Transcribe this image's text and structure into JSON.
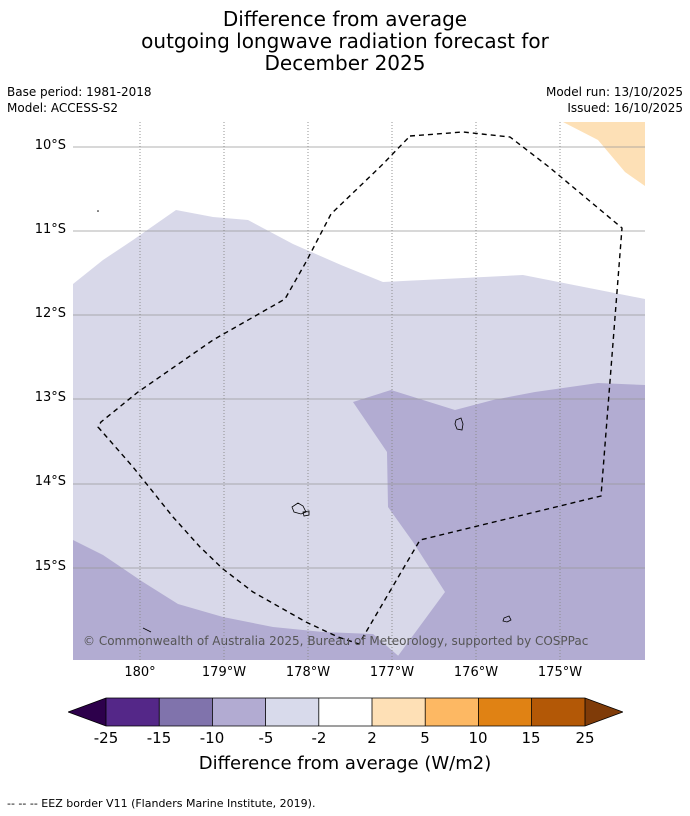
{
  "title": {
    "line1": "Difference from average",
    "line2": "outgoing longwave radiation forecast for",
    "line3": "December 2025"
  },
  "meta": {
    "base_period": "Base period: 1981-2018",
    "model": "Model: ACCESS-S2",
    "model_run": "Model run: 13/10/2025",
    "issued": "Issued: 16/10/2025"
  },
  "map": {
    "lat_labels": [
      "10°S",
      "11°S",
      "12°S",
      "13°S",
      "14°S",
      "15°S"
    ],
    "lon_labels": [
      "180°",
      "179°W",
      "178°W",
      "177°W",
      "176°W",
      "175°W"
    ],
    "copyright": "© Commonwealth of Australia 2025, Bureau of Meteorology, supported by COSPPac",
    "colors": {
      "neg_2_5": "#d8d8e9",
      "neg_5_10": "#b2acd2",
      "pos_2_5": "#fde0b6",
      "grid": "#999999"
    }
  },
  "colorbar": {
    "labels": [
      "-25",
      "-15",
      "-10",
      "-5",
      "-2",
      "2",
      "5",
      "10",
      "15",
      "25"
    ],
    "colors": [
      "#2d004b",
      "#542788",
      "#8073ac",
      "#b2abd2",
      "#d8daeb",
      "#ffffff",
      "#fee0b6",
      "#fdb863",
      "#e08214",
      "#b35806",
      "#7f3b08"
    ],
    "title": "Difference from average (W/m2)"
  },
  "footer": "--  --  -- EEZ border V11 (Flanders Marine Institute, 2019)."
}
